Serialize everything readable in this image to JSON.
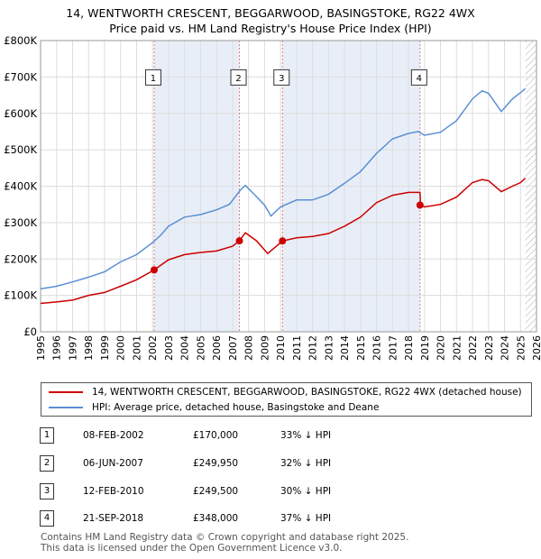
{
  "title_line1": "14, WENTWORTH CRESCENT, BEGGARWOOD, BASINGSTOKE, RG22 4WX",
  "title_line2": "Price paid vs. HM Land Registry's House Price Index (HPI)",
  "colors": {
    "property": "#cc0000",
    "hpi": "#5b8fd4",
    "band": "#e8eef8",
    "vline": "#e08080",
    "grid": "#dddddd"
  },
  "legend": {
    "property": "14, WENTWORTH CRESCENT, BEGGARWOOD, BASINGSTOKE, RG22 4WX (detached house)",
    "hpi": "HPI: Average price, detached house, Basingstoke and Deane"
  },
  "transactions": [
    {
      "num": "1",
      "date": "08-FEB-2002",
      "price": "£170,000",
      "hpi": "33% ↓ HPI"
    },
    {
      "num": "2",
      "date": "06-JUN-2007",
      "price": "£249,950",
      "hpi": "32% ↓ HPI"
    },
    {
      "num": "3",
      "date": "12-FEB-2010",
      "price": "£249,500",
      "hpi": "30% ↓ HPI"
    },
    {
      "num": "4",
      "date": "21-SEP-2018",
      "price": "£348,000",
      "hpi": "37% ↓ HPI"
    }
  ],
  "footer_line1": "Contains HM Land Registry data © Crown copyright and database right 2025.",
  "footer_line2": "This data is licensed under the Open Government Licence v3.0.",
  "chart_data": {
    "type": "line",
    "title": "Price paid vs. HM Land Registry's House Price Index (HPI)",
    "xlim": [
      1995,
      2026
    ],
    "ylim": [
      0,
      800000
    ],
    "x_ticks": [
      "1995",
      "1996",
      "1997",
      "1998",
      "1999",
      "2000",
      "2001",
      "2002",
      "2003",
      "2004",
      "2005",
      "2006",
      "2007",
      "2008",
      "2009",
      "2010",
      "2011",
      "2012",
      "2013",
      "2014",
      "2015",
      "2016",
      "2017",
      "2018",
      "2019",
      "2020",
      "2021",
      "2022",
      "2023",
      "2024",
      "2025",
      "2026"
    ],
    "y_ticks": [
      {
        "value": 0,
        "label": "£0"
      },
      {
        "value": 100000,
        "label": "£100K"
      },
      {
        "value": 200000,
        "label": "£200K"
      },
      {
        "value": 300000,
        "label": "£300K"
      },
      {
        "value": 400000,
        "label": "£400K"
      },
      {
        "value": 500000,
        "label": "£500K"
      },
      {
        "value": 600000,
        "label": "£600K"
      },
      {
        "value": 700000,
        "label": "£700K"
      },
      {
        "value": 800000,
        "label": "£800K"
      }
    ],
    "bands": [
      [
        2002.1,
        2007.43
      ],
      [
        2010.12,
        2018.72
      ]
    ],
    "hatch_from": 2025.3,
    "sales": [
      {
        "label": "1",
        "x": 2002.1,
        "y": 170000
      },
      {
        "label": "2",
        "x": 2007.43,
        "y": 249950
      },
      {
        "label": "3",
        "x": 2010.12,
        "y": 249500
      },
      {
        "label": "4",
        "x": 2018.72,
        "y": 348000
      }
    ],
    "marker_y": 700000,
    "series": [
      {
        "name": "HPI: Average price, detached house, Basingstoke and Deane",
        "points": [
          [
            1995,
            118000
          ],
          [
            1996,
            125000
          ],
          [
            1997,
            137000
          ],
          [
            1998,
            150000
          ],
          [
            1999,
            165000
          ],
          [
            2000,
            192000
          ],
          [
            2001,
            212000
          ],
          [
            2002,
            245000
          ],
          [
            2002.5,
            265000
          ],
          [
            2003,
            290000
          ],
          [
            2004,
            315000
          ],
          [
            2005,
            322000
          ],
          [
            2006,
            335000
          ],
          [
            2006.8,
            350000
          ],
          [
            2007.5,
            390000
          ],
          [
            2007.8,
            402000
          ],
          [
            2008.3,
            380000
          ],
          [
            2009,
            348000
          ],
          [
            2009.4,
            318000
          ],
          [
            2010,
            343000
          ],
          [
            2011,
            362000
          ],
          [
            2012,
            362000
          ],
          [
            2013,
            378000
          ],
          [
            2014,
            408000
          ],
          [
            2015,
            440000
          ],
          [
            2016,
            490000
          ],
          [
            2017,
            530000
          ],
          [
            2018,
            545000
          ],
          [
            2018.6,
            550000
          ],
          [
            2019,
            540000
          ],
          [
            2020,
            548000
          ],
          [
            2021,
            580000
          ],
          [
            2022,
            640000
          ],
          [
            2022.6,
            662000
          ],
          [
            2023,
            655000
          ],
          [
            2023.8,
            605000
          ],
          [
            2024.5,
            640000
          ],
          [
            2025,
            657000
          ],
          [
            2025.3,
            668000
          ]
        ]
      },
      {
        "name": "14, WENTWORTH CRESCENT, BEGGARWOOD, BASINGSTOKE, RG22 4WX (detached house)",
        "points": [
          [
            1995,
            78000
          ],
          [
            1996,
            82000
          ],
          [
            1997,
            87000
          ],
          [
            1998,
            100000
          ],
          [
            1999,
            108000
          ],
          [
            2000,
            125000
          ],
          [
            2001,
            143000
          ],
          [
            2002.1,
            170000
          ],
          [
            2003,
            198000
          ],
          [
            2004,
            212000
          ],
          [
            2005,
            218000
          ],
          [
            2006,
            222000
          ],
          [
            2007,
            235000
          ],
          [
            2007.43,
            249950
          ],
          [
            2007.8,
            272000
          ],
          [
            2008.5,
            250000
          ],
          [
            2009.2,
            215000
          ],
          [
            2010.12,
            249500
          ],
          [
            2011,
            258000
          ],
          [
            2012,
            262000
          ],
          [
            2013,
            270000
          ],
          [
            2014,
            290000
          ],
          [
            2015,
            315000
          ],
          [
            2016,
            355000
          ],
          [
            2017,
            375000
          ],
          [
            2018,
            383000
          ],
          [
            2018.72,
            383000
          ],
          [
            2018.75,
            348000
          ],
          [
            2019,
            343000
          ],
          [
            2020,
            350000
          ],
          [
            2021,
            370000
          ],
          [
            2022,
            410000
          ],
          [
            2022.6,
            418000
          ],
          [
            2023,
            415000
          ],
          [
            2023.8,
            385000
          ],
          [
            2024.5,
            400000
          ],
          [
            2025,
            410000
          ],
          [
            2025.3,
            422000
          ]
        ]
      }
    ]
  }
}
